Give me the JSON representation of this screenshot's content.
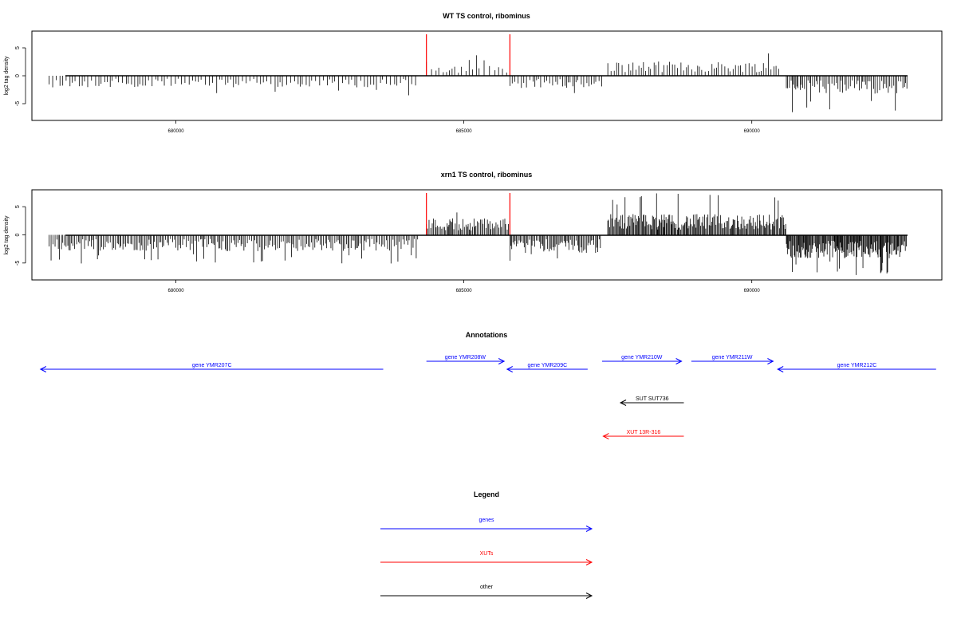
{
  "chart_data": [
    {
      "type": "bar",
      "title": "WT TS control, ribominus",
      "xlabel": "",
      "ylabel": "log2 tag density",
      "xlim": [
        677500,
        693300
      ],
      "ylim": [
        -8,
        8
      ],
      "x_ticks": [
        680000,
        685000,
        690000
      ],
      "y_ticks": [
        -5,
        0,
        5
      ],
      "profile_segments": [
        {
          "x_start": 677800,
          "x_end": 684200,
          "mean_abs": 1.3,
          "max_abs": 3.6,
          "spacing": 55,
          "direction": "minus"
        },
        {
          "x_start": 684350,
          "x_end": 685800,
          "mean_abs": 1.3,
          "max_abs": 3.8,
          "spacing": 70,
          "direction": "plus"
        },
        {
          "x_start": 685800,
          "x_end": 687400,
          "mean_abs": 1.4,
          "max_abs": 3.6,
          "spacing": 45,
          "direction": "minus"
        },
        {
          "x_start": 687500,
          "x_end": 690500,
          "mean_abs": 1.6,
          "max_abs": 5.5,
          "spacing": 45,
          "direction": "plus"
        },
        {
          "x_start": 690600,
          "x_end": 692700,
          "mean_abs": 2.0,
          "max_abs": 6.8,
          "spacing": 30,
          "direction": "minus"
        }
      ],
      "marker_lines": [
        {
          "x": 684350,
          "color": "#ff0000"
        },
        {
          "x": 685800,
          "color": "#ff0000"
        }
      ]
    },
    {
      "type": "bar",
      "title": "xrn1 TS control, ribominus",
      "xlabel": "",
      "ylabel": "log2 tag density",
      "xlim": [
        677500,
        693300
      ],
      "ylim": [
        -8,
        8
      ],
      "x_ticks": [
        680000,
        685000,
        690000
      ],
      "y_ticks": [
        -5,
        0,
        5
      ],
      "profile_segments": [
        {
          "x_start": 677800,
          "x_end": 684200,
          "mean_abs": 1.8,
          "max_abs": 5.2,
          "spacing": 28,
          "direction": "minus"
        },
        {
          "x_start": 684350,
          "x_end": 685800,
          "mean_abs": 1.9,
          "max_abs": 4.0,
          "spacing": 22,
          "direction": "plus"
        },
        {
          "x_start": 685800,
          "x_end": 687400,
          "mean_abs": 2.0,
          "max_abs": 4.8,
          "spacing": 22,
          "direction": "minus"
        },
        {
          "x_start": 687500,
          "x_end": 690600,
          "mean_abs": 2.3,
          "max_abs": 7.4,
          "spacing": 16,
          "direction": "plus"
        },
        {
          "x_start": 690600,
          "x_end": 692700,
          "mean_abs": 2.6,
          "max_abs": 7.2,
          "spacing": 14,
          "direction": "minus"
        }
      ],
      "marker_lines": [
        {
          "x": 684350,
          "color": "#ff0000"
        },
        {
          "x": 685800,
          "color": "#ff0000"
        }
      ]
    }
  ],
  "annotations": {
    "title": "Annotations",
    "features": [
      {
        "label": "gene YMR207C",
        "x_start": 683600,
        "x_end": 677650,
        "row": 1,
        "color": "#0000ff"
      },
      {
        "label": "gene YMR208W",
        "x_start": 684350,
        "x_end": 685700,
        "row": 0,
        "color": "#0000ff"
      },
      {
        "label": "gene YMR209C",
        "x_start": 687150,
        "x_end": 685750,
        "row": 1,
        "color": "#0000ff"
      },
      {
        "label": "gene YMR210W",
        "x_start": 687400,
        "x_end": 688780,
        "row": 0,
        "color": "#0000ff"
      },
      {
        "label": "gene YMR211W",
        "x_start": 688950,
        "x_end": 690370,
        "row": 0,
        "color": "#0000ff"
      },
      {
        "label": "gene YMR212C",
        "x_start": 693200,
        "x_end": 690450,
        "row": 1,
        "color": "#0000ff"
      },
      {
        "label": "SUT SUT736",
        "x_start": 688820,
        "x_end": 687720,
        "row": 2,
        "color": "#000000"
      },
      {
        "label": "XUT 13R-316",
        "x_start": 688820,
        "x_end": 687420,
        "row": 3,
        "color": "#ff0000"
      }
    ]
  },
  "legend": {
    "title": "Legend",
    "items": [
      {
        "label": "genes",
        "color": "#0000ff"
      },
      {
        "label": "XUTs",
        "color": "#ff0000"
      },
      {
        "label": "other",
        "color": "#000000"
      }
    ]
  }
}
